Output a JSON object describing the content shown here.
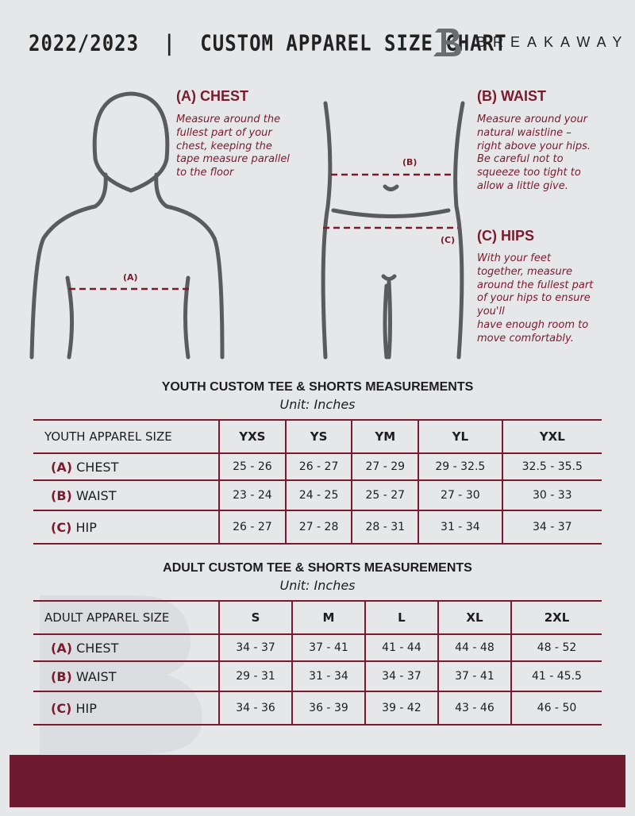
{
  "header": {
    "title": "2022/2023  |  CUSTOM APPAREL SIZE CHART",
    "brand": "BREAKAWAY"
  },
  "chest": {
    "heading": "(A) CHEST",
    "description": "Measure around the\nfullest part of your\nchest, keeping the\ntape measure parallel\nto the floor",
    "marker": "(A)"
  },
  "waist": {
    "heading": "(B) WAIST",
    "description": "Measure around your\nnatural waistline –\nright above your hips.\nBe careful not to\nsqueeze too tight to\nallow a little give.",
    "marker": "(B)"
  },
  "hips": {
    "heading": "(C) HIPS",
    "description": "With your feet\ntogether, measure\naround the fullest part\nof your hips to ensure\nyou'll\nhave enough room to\nmove comfortably.",
    "marker": "(C)"
  },
  "colors": {
    "accent": "#7a1a2e",
    "background": "#e6e7e9",
    "footer": "#6f1a2e"
  },
  "tables": [
    {
      "title": "YOUTH CUSTOM TEE & SHORTS MEASUREMENTS",
      "unit": "Unit: Inches",
      "header_label": "YOUTH APPAREL SIZE",
      "sizes": [
        "YXS",
        "YS",
        "YM",
        "YL",
        "YXL"
      ],
      "rows": [
        {
          "code": "(A)",
          "name": "CHEST",
          "values": [
            "25 - 26",
            "26 - 27",
            "27 - 29",
            "29 - 32.5",
            "32.5 - 35.5"
          ]
        },
        {
          "code": "(B)",
          "name": "WAIST",
          "values": [
            "23 - 24",
            "24 - 25",
            "25 - 27",
            "27 - 30",
            "30 - 33"
          ]
        },
        {
          "code": "(C)",
          "name": "HIP",
          "values": [
            "26 - 27",
            "27 - 28",
            "28 - 31",
            "31 - 34",
            "34 - 37"
          ]
        }
      ]
    },
    {
      "title": "ADULT CUSTOM TEE & SHORTS MEASUREMENTS",
      "unit": "Unit: Inches",
      "header_label": "ADULT APPAREL SIZE",
      "sizes": [
        "S",
        "M",
        "L",
        "XL",
        "2XL"
      ],
      "rows": [
        {
          "code": "(A)",
          "name": "CHEST",
          "values": [
            "34 - 37",
            "37 - 41",
            "41 - 44",
            "44 - 48",
            "48 - 52"
          ]
        },
        {
          "code": "(B)",
          "name": "WAIST",
          "values": [
            "29 - 31",
            "31 - 34",
            "34 - 37",
            "37 - 41",
            "41 - 45.5"
          ]
        },
        {
          "code": "(C)",
          "name": "HIP",
          "values": [
            "34 - 36",
            "36 - 39",
            "39 - 42",
            "43 - 46",
            "46 - 50"
          ]
        }
      ]
    }
  ]
}
